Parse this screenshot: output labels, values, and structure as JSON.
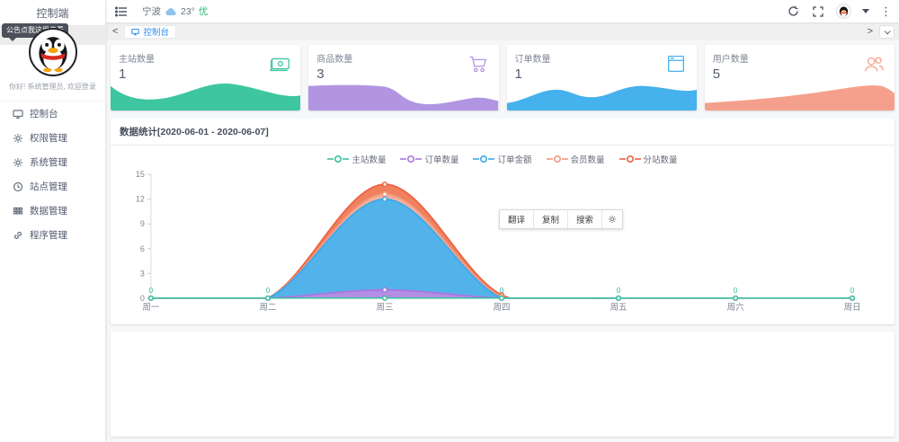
{
  "sidebar": {
    "title": "控制端",
    "tooltip": "公告点我这里去看",
    "greeting": "你好! 系统管理员, 欢迎登录",
    "menu": [
      {
        "label": "控制台",
        "icon": "monitor-icon"
      },
      {
        "label": "权限管理",
        "icon": "gear-icon"
      },
      {
        "label": "系统管理",
        "icon": "gear-icon"
      },
      {
        "label": "站点管理",
        "icon": "clock-icon"
      },
      {
        "label": "数据管理",
        "icon": "grid-icon"
      },
      {
        "label": "程序管理",
        "icon": "link-icon"
      }
    ]
  },
  "header": {
    "city": "宁波",
    "temp": "23°",
    "quality": "优"
  },
  "tabbar": {
    "tabs": [
      {
        "label": "控制台",
        "icon": "monitor-icon"
      }
    ]
  },
  "cards": [
    {
      "title": "主站数量",
      "value": "1",
      "color": "#3ec6a0",
      "icon": "money-icon"
    },
    {
      "title": "商品数量",
      "value": "3",
      "color": "#b195e2",
      "icon": "cart-icon"
    },
    {
      "title": "订单数量",
      "value": "1",
      "color": "#45b1ed",
      "icon": "window-icon"
    },
    {
      "title": "用户数量",
      "value": "5",
      "color": "#f5a08c",
      "icon": "users-icon"
    }
  ],
  "chart": {
    "header": "数据统计[2020-06-01 - 2020-06-07]",
    "popup": {
      "items": [
        "翻译",
        "复制",
        "搜索"
      ],
      "gear": "settings-icon"
    }
  },
  "chart_data": {
    "type": "area",
    "title": "数据统计[2020-06-01 - 2020-06-07]",
    "x": [
      "周一",
      "周二",
      "周三",
      "周四",
      "周五",
      "周六",
      "周日"
    ],
    "ylim": [
      0,
      15
    ],
    "yticks": [
      0,
      3,
      6,
      9,
      12,
      15
    ],
    "grid": false,
    "legend_position": "top-center",
    "series": [
      {
        "name": "主站数量",
        "color": "#3bbf9e",
        "fill": "#3bbf9e",
        "values": [
          0,
          0,
          0,
          0,
          0,
          0,
          0
        ]
      },
      {
        "name": "订单数量",
        "color": "#a678de",
        "fill": "#b78ce4",
        "values": [
          0,
          0,
          1,
          0,
          0,
          0,
          0
        ]
      },
      {
        "name": "订单金额",
        "color": "#3da8ea",
        "fill": "#49b3ee",
        "values": [
          0,
          0,
          12,
          0,
          0,
          0,
          0
        ]
      },
      {
        "name": "会员数量",
        "color": "#f09a82",
        "fill": "#f6b29d",
        "values": [
          0,
          0,
          12.6,
          0.2,
          0,
          0,
          0
        ]
      },
      {
        "name": "分站数量",
        "color": "#ec6342",
        "fill": "#ef7a55",
        "values": [
          0,
          0,
          13.8,
          0.4,
          0,
          0,
          0
        ]
      }
    ],
    "point_labels": {
      "series": "主站数量",
      "text": "0",
      "indices": [
        0,
        1,
        3,
        4,
        5,
        6
      ]
    }
  }
}
